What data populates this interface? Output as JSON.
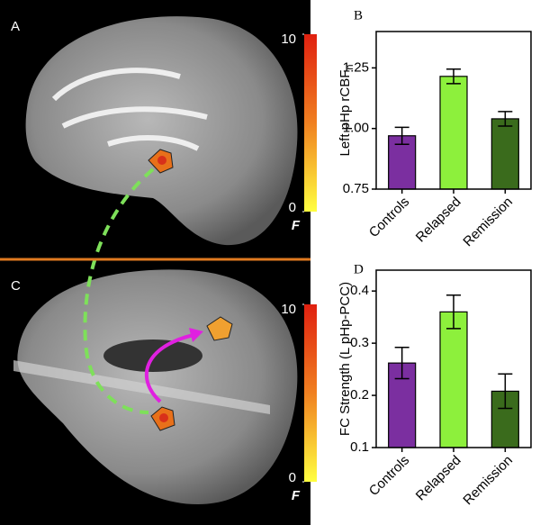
{
  "panels": [
    {
      "label": "A",
      "colorbar": {
        "clim": [
          0,
          10
        ],
        "ticks": [
          10,
          0
        ],
        "label": "F"
      }
    },
    {
      "label": "C",
      "colorbar": {
        "clim": [
          0,
          10
        ],
        "ticks": [
          10,
          0
        ],
        "label": "F"
      }
    }
  ],
  "chart_data": [
    {
      "type": "bar",
      "label": "B",
      "ylabel": "Left pHp rCBF",
      "ylabel_subscript": "n",
      "categories": [
        "Controls",
        "Relapsed",
        "Remission"
      ],
      "values": [
        0.97,
        1.215,
        1.04
      ],
      "errors": [
        0.035,
        0.03,
        0.03
      ],
      "colors": [
        "#7b2fa0",
        "#8df03c",
        "#3a6b1c"
      ],
      "ylim": [
        0.75,
        1.4
      ],
      "yticks": [
        0.75,
        {
          "value": 1,
          "label": "1.00"
        },
        1.25
      ]
    },
    {
      "type": "bar",
      "label": "D",
      "ylabel": "FC Strength (L pHp-PCC)",
      "categories": [
        "Controls",
        "Relapsed",
        "Remission"
      ],
      "values": [
        0.262,
        0.36,
        0.208
      ],
      "errors": [
        0.03,
        0.032,
        0.033
      ],
      "colors": [
        "#7b2fa0",
        "#8df03c",
        "#3a6b1c"
      ],
      "ylim": [
        0.1,
        0.44
      ],
      "yticks": [
        0.1,
        0.2,
        0.3,
        0.4
      ]
    }
  ]
}
